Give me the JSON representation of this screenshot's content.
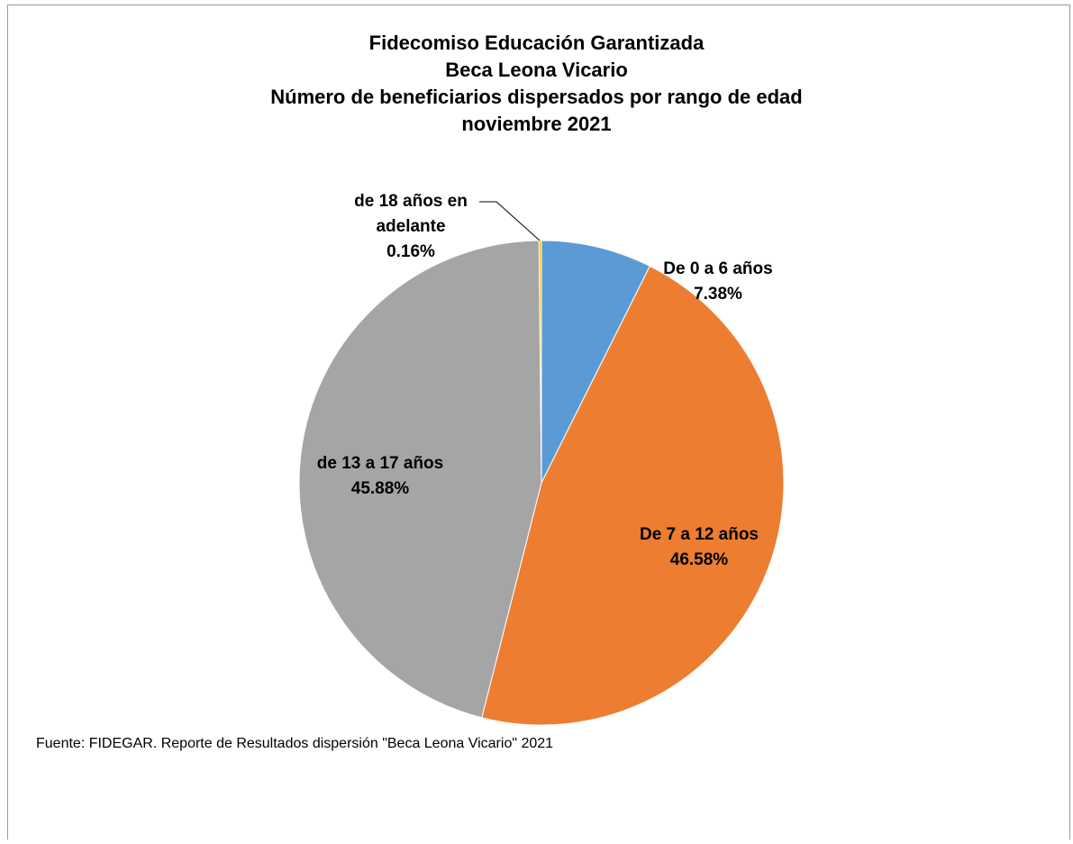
{
  "chart_data": {
    "type": "pie",
    "title_lines": [
      "Fidecomiso Educación Garantizada",
      "Beca Leona Vicario",
      "Número de beneficiarios dispersados por rango de edad",
      "noviembre 2021"
    ],
    "slices": [
      {
        "label_lines": [
          "De 0 a 6 años"
        ],
        "value_label": "7.38%",
        "value": 7.38,
        "color": "#5B9BD5"
      },
      {
        "label_lines": [
          "De 7 a 12 años"
        ],
        "value_label": "46.58%",
        "value": 46.58,
        "color": "#ED7D31"
      },
      {
        "label_lines": [
          "de 13 a 17 años"
        ],
        "value_label": "45.88%",
        "value": 45.88,
        "color": "#A5A5A5"
      },
      {
        "label_lines": [
          "de 18 años en",
          "adelante"
        ],
        "value_label": "0.16%",
        "value": 0.16,
        "color": "#FFC000"
      }
    ],
    "start_angle": "12 o'clock",
    "direction": "clockwise",
    "legend": "none"
  },
  "footer": {
    "source": "Fuente: FIDEGAR. Reporte de Resultados dispersión \"Beca Leona Vicario\" 2021"
  }
}
